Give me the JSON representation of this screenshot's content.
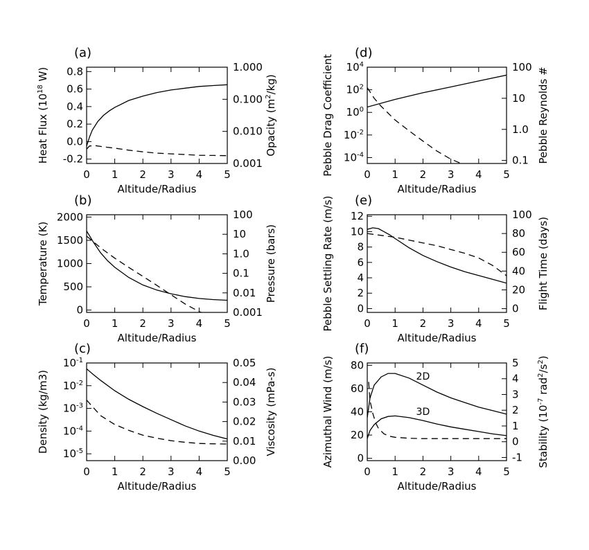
{
  "chart_data": [
    {
      "panel": "(a)",
      "type": "line",
      "xlabel": "Altitude/Radius",
      "xlim": [
        0,
        5
      ],
      "x_ticks": [
        "0",
        "1",
        "2",
        "3",
        "4",
        "5"
      ],
      "left_axis": {
        "label": "Heat Flux (10^18 W)",
        "ylim": [
          -0.25,
          0.85
        ],
        "scale": "linear",
        "ticks": [
          "-0.2",
          "0.0",
          "0.2",
          "0.4",
          "0.6",
          "0.8"
        ]
      },
      "right_axis": {
        "label": "Opacity (m^2/kg)",
        "ylim": [
          0.001,
          1.0
        ],
        "scale": "log",
        "ticks": [
          "0.001",
          "0.010",
          "0.100",
          "1.000"
        ]
      },
      "series": [
        {
          "name": "Heat flux",
          "style": "solid",
          "axis": "left",
          "x": [
            0,
            0.1,
            0.2,
            0.4,
            0.6,
            0.8,
            1.0,
            1.5,
            2.0,
            2.5,
            3.0,
            3.5,
            4.0,
            4.5,
            5.0
          ],
          "y": [
            -0.05,
            0.05,
            0.13,
            0.23,
            0.3,
            0.35,
            0.39,
            0.47,
            0.52,
            0.56,
            0.59,
            0.61,
            0.63,
            0.64,
            0.65
          ]
        },
        {
          "name": "Opacity",
          "style": "dashed",
          "axis": "right",
          "x": [
            0,
            0.1,
            0.3,
            0.6,
            1.0,
            1.5,
            2.0,
            2.5,
            3.0,
            3.5,
            4.0,
            4.5,
            5.0
          ],
          "y": [
            0.0028,
            0.0035,
            0.0036,
            0.0033,
            0.003,
            0.0026,
            0.0023,
            0.0021,
            0.002,
            0.0019,
            0.0018,
            0.00178,
            0.00175
          ]
        }
      ]
    },
    {
      "panel": "(b)",
      "type": "line",
      "xlabel": "Altitude/Radius",
      "xlim": [
        0,
        5
      ],
      "x_ticks": [
        "0",
        "1",
        "2",
        "3",
        "4",
        "5"
      ],
      "left_axis": {
        "label": "Temperature (K)",
        "ylim": [
          -50,
          2050
        ],
        "scale": "linear",
        "ticks": [
          "0",
          "500",
          "1000",
          "1500",
          "2000"
        ]
      },
      "right_axis": {
        "label": "Pressure (bars)",
        "ylim": [
          0.001,
          100
        ],
        "scale": "log",
        "ticks": [
          "0.001",
          "0.01",
          "0.1",
          "1.0",
          "10",
          "100"
        ]
      },
      "series": [
        {
          "name": "Temperature",
          "style": "solid",
          "axis": "left",
          "x": [
            0,
            0.25,
            0.5,
            0.75,
            1.0,
            1.5,
            2.0,
            2.5,
            3.0,
            3.5,
            4.0,
            4.5,
            5.0
          ],
          "y": [
            1700,
            1450,
            1230,
            1060,
            920,
            700,
            540,
            430,
            350,
            290,
            250,
            225,
            210
          ]
        },
        {
          "name": "Pressure",
          "style": "dashed",
          "axis": "right",
          "x": [
            0,
            0.5,
            1.0,
            1.5,
            2.0,
            2.5,
            3.0,
            3.5,
            4.0,
            4.2
          ],
          "y": [
            8,
            2.0,
            0.6,
            0.2,
            0.07,
            0.024,
            0.008,
            0.0027,
            0.0011,
            0.00085
          ]
        }
      ]
    },
    {
      "panel": "(c)",
      "type": "line",
      "xlabel": "Altitude/Radius",
      "xlim": [
        0,
        5
      ],
      "x_ticks": [
        "0",
        "1",
        "2",
        "3",
        "4",
        "5"
      ],
      "left_axis": {
        "label": "Density (kg/m3)",
        "ylim": [
          5e-06,
          0.1
        ],
        "scale": "log",
        "ticks": [
          "10^-5",
          "10^-4",
          "10^-3",
          "10^-2",
          "10^-1"
        ]
      },
      "right_axis": {
        "label": "Viscosity (mPa-s)",
        "ylim": [
          0,
          0.05
        ],
        "scale": "linear",
        "ticks": [
          "0.00",
          "0.01",
          "0.02",
          "0.03",
          "0.04",
          "0.05"
        ]
      },
      "series": [
        {
          "name": "Density",
          "style": "solid",
          "axis": "left",
          "x": [
            0,
            0.25,
            0.5,
            1.0,
            1.5,
            2.0,
            2.5,
            3.0,
            3.5,
            4.0,
            4.5,
            5.0
          ],
          "y": [
            0.055,
            0.03,
            0.017,
            0.006,
            0.0025,
            0.0012,
            0.0006,
            0.00032,
            0.00017,
            0.0001,
            6.5e-05,
            4.5e-05
          ]
        },
        {
          "name": "Viscosity",
          "style": "dashed",
          "axis": "right",
          "x": [
            0,
            0.25,
            0.5,
            1.0,
            1.5,
            2.0,
            2.5,
            3.0,
            3.5,
            4.0,
            4.5,
            5.0
          ],
          "y": [
            0.031,
            0.027,
            0.023,
            0.0185,
            0.0155,
            0.013,
            0.0115,
            0.0102,
            0.0094,
            0.0088,
            0.0086,
            0.0085
          ]
        }
      ]
    },
    {
      "panel": "(d)",
      "type": "line",
      "xlabel": "Altitude/Radius",
      "xlim": [
        0,
        5
      ],
      "x_ticks": [
        "0",
        "1",
        "2",
        "3",
        "4",
        "5"
      ],
      "left_axis": {
        "label": "Pebble Drag Coefficient",
        "ylim": [
          3e-05,
          10000
        ],
        "scale": "log",
        "ticks": [
          "10^-4",
          "10^-2",
          "10^0",
          "10^2",
          "10^4"
        ]
      },
      "right_axis": {
        "label": "Pebble Reynolds #",
        "ylim": [
          0.08,
          100
        ],
        "scale": "log",
        "ticks": [
          "0.1",
          "1.0",
          "10",
          "100"
        ]
      },
      "series": [
        {
          "name": "Drag coefficient",
          "style": "solid",
          "axis": "left",
          "x": [
            0,
            1,
            2,
            3,
            4,
            5
          ],
          "y": [
            3,
            14,
            55,
            180,
            600,
            2000
          ]
        },
        {
          "name": "Reynolds number",
          "style": "dashed",
          "axis": "right",
          "x": [
            0,
            0.25,
            0.5,
            1.0,
            1.5,
            2.0,
            2.5,
            3.0,
            3.3,
            3.5
          ],
          "y": [
            22,
            10,
            5.5,
            2.0,
            0.9,
            0.42,
            0.2,
            0.11,
            0.085,
            0.075
          ]
        }
      ]
    },
    {
      "panel": "(e)",
      "type": "line",
      "xlabel": "Altitude/Radius",
      "xlim": [
        0,
        5
      ],
      "x_ticks": [
        "0",
        "1",
        "2",
        "3",
        "4",
        "5"
      ],
      "left_axis": {
        "label": "Pebble Settling Rate (m/s)",
        "ylim": [
          -0.5,
          12.2
        ],
        "scale": "linear",
        "ticks": [
          "0",
          "2",
          "4",
          "6",
          "8",
          "10",
          "12"
        ]
      },
      "right_axis": {
        "label": "Flight Time (days)",
        "ylim": [
          -4,
          100
        ],
        "scale": "linear",
        "ticks": [
          "0",
          "20",
          "40",
          "60",
          "80",
          "100"
        ]
      },
      "series": [
        {
          "name": "Settling rate",
          "style": "solid",
          "axis": "left",
          "x": [
            0,
            0.2,
            0.4,
            0.6,
            0.8,
            1.0,
            1.5,
            2.0,
            2.5,
            3.0,
            3.5,
            4.0,
            4.5,
            5.0
          ],
          "y": [
            10.3,
            10.5,
            10.4,
            10.0,
            9.6,
            9.1,
            7.9,
            6.9,
            6.1,
            5.4,
            4.8,
            4.3,
            3.8,
            3.3
          ]
        },
        {
          "name": "Flight time",
          "style": "dashed",
          "axis": "right",
          "x": [
            0,
            0.5,
            1.0,
            1.5,
            2.0,
            2.5,
            3.0,
            3.5,
            4.0,
            4.5,
            5.0
          ],
          "y": [
            80,
            78,
            76,
            73,
            70,
            67,
            63,
            59,
            54,
            46,
            35
          ]
        }
      ]
    },
    {
      "panel": "(f)",
      "type": "line",
      "xlabel": "Altitude/Radius",
      "xlim": [
        0,
        5
      ],
      "x_ticks": [
        "0",
        "1",
        "2",
        "3",
        "4",
        "5"
      ],
      "left_axis": {
        "label": "Azimuthal Wind (m/s)",
        "ylim": [
          -2,
          82
        ],
        "scale": "linear",
        "ticks": [
          "0",
          "20",
          "40",
          "60",
          "80"
        ]
      },
      "right_axis": {
        "label": "Stability (10^-7 rad^2/s^2)",
        "ylim": [
          -1.2,
          5.0
        ],
        "scale": "linear",
        "ticks": [
          "-1",
          "0",
          "1",
          "2",
          "3",
          "4",
          "5"
        ]
      },
      "annotations": [
        "2D",
        "3D"
      ],
      "series": [
        {
          "name": "2D",
          "style": "solid",
          "axis": "left",
          "x": [
            0,
            0.1,
            0.25,
            0.5,
            0.75,
            1.0,
            1.5,
            2.0,
            2.5,
            3.0,
            3.5,
            4.0,
            4.5,
            5.0
          ],
          "y": [
            35,
            52,
            63,
            70,
            73,
            73,
            69,
            63,
            57,
            52,
            48,
            44,
            41,
            38
          ]
        },
        {
          "name": "3D",
          "style": "solid",
          "axis": "left",
          "x": [
            0,
            0.1,
            0.25,
            0.5,
            0.75,
            1.0,
            1.5,
            2.0,
            2.5,
            3.0,
            3.5,
            4.0,
            4.5,
            5.0
          ],
          "y": [
            17,
            24,
            29,
            34,
            36,
            36.5,
            35,
            32.5,
            29.5,
            27,
            25,
            23,
            21,
            19.5
          ]
        },
        {
          "name": "Stability",
          "style": "dashed",
          "axis": "right",
          "x": [
            0.05,
            0.1,
            0.2,
            0.3,
            0.4,
            0.6,
            0.8,
            1.0,
            1.5,
            2.0,
            3.0,
            4.0,
            5.0
          ],
          "y": [
            3.8,
            2.6,
            1.8,
            1.2,
            0.85,
            0.5,
            0.35,
            0.28,
            0.22,
            0.2,
            0.2,
            0.2,
            0.2
          ]
        }
      ]
    }
  ]
}
